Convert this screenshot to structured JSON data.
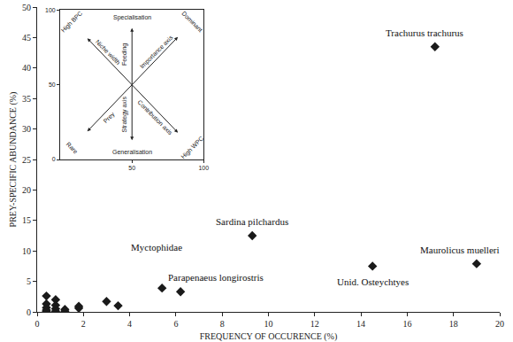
{
  "chart_data": [
    {
      "type": "scatter",
      "x_label": "FREQUENCY OF OCCURENCE (%)",
      "y_label": "PREY-SPECIFIC ABUNDANCE (%)",
      "x": [
        17.2,
        9.3,
        5.4,
        6.2,
        14.5,
        19.0,
        3.0,
        3.5,
        1.8,
        1.8,
        1.2,
        0.8,
        0.8,
        0.8,
        0.4,
        0.4,
        0.4,
        0.4,
        0.4,
        0.8,
        1.2
      ],
      "values": [
        43.5,
        12.5,
        3.9,
        3.3,
        7.5,
        7.9,
        1.7,
        1.0,
        0.6,
        0.9,
        0.4,
        2.0,
        1.1,
        0.5,
        2.6,
        1.3,
        0.7,
        0.3,
        0.1,
        0.1,
        0.1
      ],
      "labels": [
        "Trachurus trachurus",
        "Sardina pilchardus",
        "Myctophidae",
        "Parapenaeus longirostris",
        "Unid. Osteychtyes",
        "Maurolicus muelleri",
        null,
        null,
        null,
        null,
        null,
        null,
        null,
        null,
        null,
        null,
        null,
        null,
        null,
        null,
        null
      ],
      "xlim": [
        0,
        20
      ],
      "xticks": [
        0,
        2,
        4,
        6,
        8,
        10,
        12,
        14,
        16,
        18,
        20
      ],
      "ylim": [
        0,
        50
      ],
      "yticks": [
        0,
        5,
        10,
        15,
        20,
        25,
        30,
        35,
        40,
        45,
        50
      ],
      "marker": "diamond",
      "color": "#1a1a1a",
      "grid": false
    },
    {
      "type": "diagram",
      "xlim": [
        0,
        100
      ],
      "ylim": [
        0,
        100
      ],
      "xticks": [
        50,
        100
      ],
      "yticks": [
        0,
        50,
        100
      ],
      "texts": {
        "top_left": "High BPC",
        "top": "Specialisation",
        "top_right": "Dominant",
        "upper_left": "Niche width",
        "upper_middle": "Feeding",
        "upper_right": "Importance axis",
        "lower_left": "Prey",
        "lower_middle": "Strategy axis",
        "lower_right": "Contribution axis",
        "bottom_left": "Rare",
        "bottom": "Generalisation",
        "bottom_right": "High WPC"
      }
    }
  ]
}
